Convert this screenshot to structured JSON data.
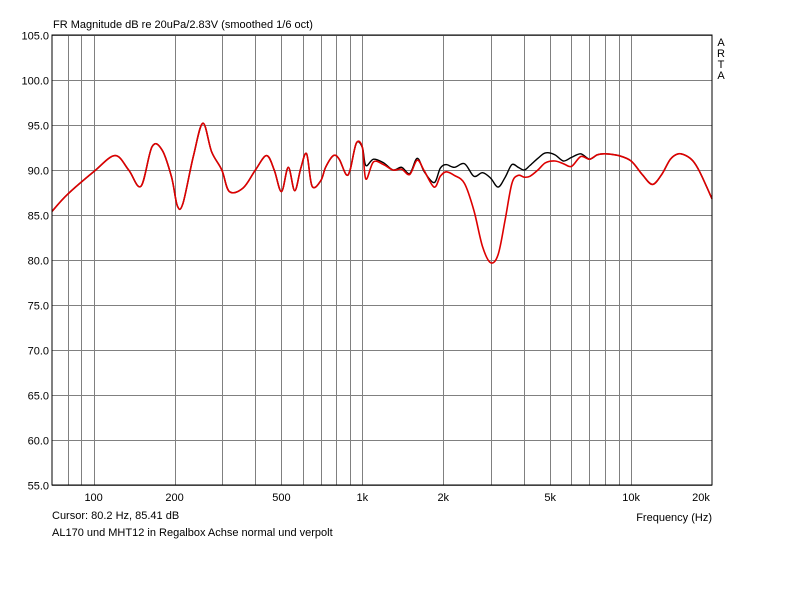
{
  "chart_data": {
    "type": "line",
    "title": "FR Magnitude dB re 20uPa/2.83V (smoothed 1/6 oct)",
    "watermark": "ARTA",
    "xlabel": "Frequency (Hz)",
    "ylabel": "",
    "x_scale": "log",
    "xlim": [
      70,
      20000
    ],
    "ylim": [
      55,
      105
    ],
    "x_ticks": [
      100,
      200,
      500,
      1000,
      2000,
      5000,
      10000,
      20000
    ],
    "x_tick_labels": [
      "100",
      "200",
      "500",
      "1k",
      "2k",
      "5k",
      "10k",
      "20k"
    ],
    "y_ticks": [
      55,
      60,
      65,
      70,
      75,
      80,
      85,
      90,
      95,
      100,
      105
    ],
    "y_tick_labels": [
      "55.0",
      "60.0",
      "65.0",
      "70.0",
      "75.0",
      "80.0",
      "85.0",
      "90.0",
      "95.0",
      "100.0",
      "105.0"
    ],
    "grid": true,
    "series": [
      {
        "color": "#000000",
        "x": [
          70,
          80,
          100,
          120,
          135,
          150,
          165,
          180,
          195,
          205,
          215,
          235,
          255,
          275,
          300,
          320,
          360,
          400,
          440,
          470,
          500,
          530,
          560,
          590,
          620,
          650,
          700,
          730,
          780,
          820,
          870,
          900,
          950,
          1000,
          1030,
          1100,
          1200,
          1300,
          1400,
          1500,
          1600,
          1700,
          1850,
          1950,
          2050,
          2200,
          2400,
          2600,
          2800,
          3000,
          3200,
          3400,
          3600,
          3800,
          4000,
          4200,
          4500,
          4800,
          5200,
          5600,
          6000,
          6500,
          7000,
          7500,
          8000,
          9000,
          10000,
          11000,
          12000,
          13000,
          14000,
          15000,
          16000,
          17000,
          18000,
          20000
        ],
        "y": [
          85.4,
          87.3,
          89.8,
          91.6,
          90.0,
          88.2,
          92.6,
          92.2,
          89.2,
          86.0,
          86.3,
          91.5,
          95.2,
          92.0,
          90.0,
          87.6,
          88.0,
          90.0,
          91.6,
          90.0,
          87.6,
          90.3,
          87.7,
          90.2,
          91.8,
          88.2,
          88.8,
          90.3,
          91.6,
          91.2,
          89.5,
          90.0,
          93.0,
          92.5,
          90.5,
          91.2,
          90.8,
          90.0,
          90.3,
          89.6,
          91.3,
          89.8,
          88.6,
          90.2,
          90.6,
          90.3,
          90.7,
          89.3,
          89.7,
          89.1,
          88.1,
          89.2,
          90.6,
          90.3,
          90.0,
          90.5,
          91.3,
          91.9,
          91.7,
          91.0,
          91.4,
          91.8,
          91.2,
          91.7,
          91.8,
          91.6,
          91.0,
          89.5,
          88.4,
          89.5,
          91.2,
          91.8,
          91.6,
          91.0,
          89.8,
          86.8
        ]
      },
      {
        "color": "#dd0000",
        "x": [
          70,
          80,
          100,
          120,
          135,
          150,
          165,
          180,
          195,
          205,
          215,
          235,
          255,
          275,
          300,
          320,
          360,
          400,
          440,
          470,
          500,
          530,
          560,
          590,
          620,
          650,
          700,
          730,
          780,
          820,
          870,
          900,
          950,
          1000,
          1030,
          1100,
          1200,
          1300,
          1400,
          1500,
          1600,
          1700,
          1850,
          1950,
          2050,
          2200,
          2400,
          2600,
          2800,
          3000,
          3200,
          3400,
          3600,
          3800,
          4000,
          4200,
          4500,
          4800,
          5200,
          5600,
          6000,
          6500,
          7000,
          7500,
          8000,
          9000,
          10000,
          11000,
          12000,
          13000,
          14000,
          15000,
          16000,
          17000,
          18000,
          20000
        ],
        "y": [
          85.4,
          87.3,
          89.8,
          91.6,
          90.0,
          88.2,
          92.6,
          92.2,
          89.2,
          86.0,
          86.3,
          91.5,
          95.2,
          92.0,
          90.0,
          87.6,
          88.0,
          90.0,
          91.6,
          90.0,
          87.6,
          90.3,
          87.7,
          90.2,
          91.8,
          88.2,
          88.8,
          90.3,
          91.6,
          91.2,
          89.5,
          90.0,
          93.0,
          92.5,
          89.0,
          90.9,
          90.6,
          90.0,
          90.1,
          89.5,
          91.1,
          89.9,
          88.1,
          89.3,
          89.8,
          89.4,
          88.5,
          85.5,
          81.5,
          79.7,
          80.6,
          84.5,
          88.5,
          89.4,
          89.2,
          89.3,
          90.0,
          90.8,
          91.0,
          90.7,
          90.4,
          91.5,
          91.2,
          91.7,
          91.8,
          91.6,
          91.0,
          89.5,
          88.4,
          89.5,
          91.2,
          91.8,
          91.6,
          91.0,
          89.8,
          86.8
        ]
      }
    ]
  },
  "status": {
    "cursor": "Cursor: 80.2 Hz, 85.41 dB",
    "caption": "AL170 und MHT12 in Regalbox Achse normal und verpolt"
  }
}
